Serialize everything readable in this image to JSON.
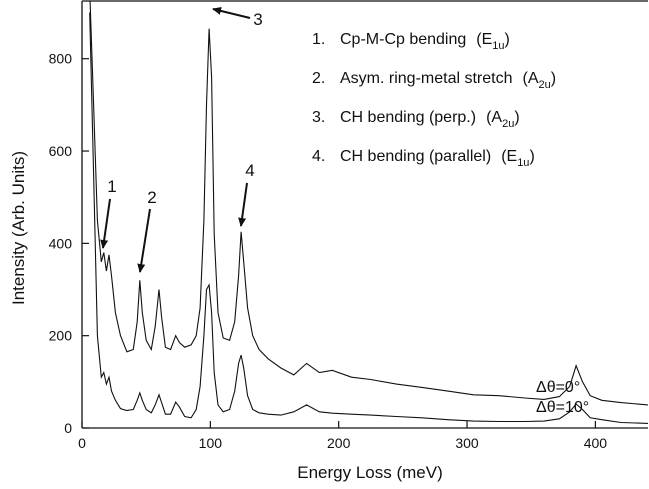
{
  "chart_data": {
    "type": "line",
    "x_label": "Energy Loss (meV)",
    "y_label": "Intensity (Arb. Units)",
    "xlim": [
      0,
      441
    ],
    "ylim": [
      0,
      925
    ],
    "xticks": [
      0,
      100,
      200,
      300,
      400
    ],
    "yticks": [
      0,
      200,
      400,
      600,
      800
    ],
    "x": [
      6,
      9,
      12,
      15,
      17,
      19,
      21,
      23,
      26,
      30,
      35,
      40,
      43,
      45,
      47,
      50,
      54,
      57,
      60,
      62,
      65,
      69,
      73,
      76,
      80,
      85,
      89,
      92,
      95,
      97,
      99,
      101,
      103,
      106,
      110,
      115,
      119,
      122,
      124,
      126,
      129,
      133,
      138,
      145,
      155,
      165,
      175,
      185,
      195,
      210,
      225,
      245,
      265,
      285,
      305,
      325,
      345,
      360,
      372,
      380,
      385,
      390,
      396,
      405,
      420,
      441
    ],
    "series": [
      {
        "name": "Δθ=0°",
        "color": "#111111",
        "values": [
          950,
          700,
          450,
          360,
          380,
          340,
          375,
          330,
          250,
          200,
          165,
          170,
          230,
          320,
          250,
          190,
          170,
          220,
          300,
          240,
          175,
          170,
          200,
          185,
          175,
          180,
          200,
          260,
          450,
          700,
          865,
          760,
          420,
          250,
          195,
          190,
          230,
          330,
          425,
          360,
          260,
          200,
          170,
          150,
          130,
          115,
          140,
          120,
          125,
          110,
          105,
          95,
          88,
          80,
          72,
          70,
          65,
          62,
          68,
          90,
          135,
          100,
          70,
          60,
          55,
          50
        ]
      },
      {
        "name": "Δθ=10°",
        "color": "#111111",
        "values": [
          900,
          550,
          200,
          110,
          120,
          95,
          110,
          80,
          60,
          42,
          38,
          40,
          60,
          76,
          60,
          40,
          33,
          50,
          72,
          55,
          30,
          30,
          56,
          45,
          25,
          22,
          40,
          90,
          200,
          300,
          310,
          250,
          120,
          50,
          35,
          40,
          80,
          140,
          158,
          130,
          70,
          40,
          33,
          30,
          28,
          35,
          50,
          35,
          32,
          30,
          28,
          25,
          22,
          18,
          15,
          14,
          14,
          15,
          20,
          35,
          52,
          40,
          22,
          18,
          12,
          10
        ]
      }
    ],
    "legend": [
      {
        "number": "1.",
        "label": "Cp-M-Cp bending",
        "symbol": "(E",
        "subscript": "1u",
        "close": ")"
      },
      {
        "number": "2.",
        "label": "Asym. ring-metal stretch",
        "symbol": "(A",
        "subscript": "2u",
        "close": ")"
      },
      {
        "number": "3.",
        "label": "CH bending (perp.)",
        "symbol": "(A",
        "subscript": "2u",
        "close": ")"
      },
      {
        "number": "4.",
        "label": "CH bending (parallel)",
        "symbol": "(E",
        "subscript": "1u",
        "close": ")"
      }
    ],
    "annotations": [
      "1",
      "2",
      "3",
      "4"
    ]
  }
}
